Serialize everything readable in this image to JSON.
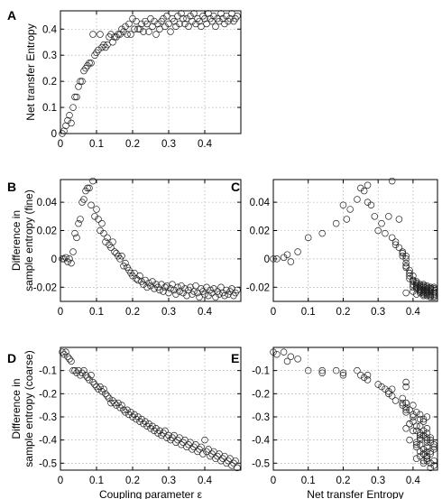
{
  "chart_data": [
    {
      "id": "A",
      "type": "scatter",
      "panel_label": "A",
      "xlabel": "",
      "ylabel": "Net transfer Entropy",
      "xlim": [
        0,
        0.5
      ],
      "ylim": [
        0,
        0.47
      ],
      "xticks": [
        0,
        0.1,
        0.2,
        0.3,
        0.4
      ],
      "xticklabels": [
        "0",
        "0.1",
        "0.2",
        "0.3",
        "0.4"
      ],
      "yticks": [
        0,
        0.1,
        0.2,
        0.3,
        0.4
      ],
      "yticklabels": [
        "0",
        "0.1",
        "0.2",
        "0.3",
        "0.4"
      ],
      "x": [
        0.005,
        0.01,
        0.015,
        0.02,
        0.025,
        0.03,
        0.035,
        0.04,
        0.045,
        0.05,
        0.055,
        0.06,
        0.065,
        0.07,
        0.075,
        0.08,
        0.085,
        0.09,
        0.095,
        0.1,
        0.105,
        0.11,
        0.115,
        0.12,
        0.125,
        0.13,
        0.135,
        0.14,
        0.145,
        0.15,
        0.155,
        0.16,
        0.165,
        0.17,
        0.175,
        0.18,
        0.185,
        0.19,
        0.195,
        0.2,
        0.205,
        0.21,
        0.215,
        0.22,
        0.225,
        0.23,
        0.235,
        0.24,
        0.245,
        0.25,
        0.255,
        0.26,
        0.265,
        0.27,
        0.275,
        0.28,
        0.285,
        0.29,
        0.295,
        0.3,
        0.305,
        0.31,
        0.315,
        0.32,
        0.325,
        0.33,
        0.335,
        0.34,
        0.345,
        0.35,
        0.355,
        0.36,
        0.365,
        0.37,
        0.375,
        0.38,
        0.385,
        0.39,
        0.395,
        0.4,
        0.405,
        0.41,
        0.415,
        0.42,
        0.425,
        0.43,
        0.435,
        0.44,
        0.445,
        0.45,
        0.455,
        0.46,
        0.465,
        0.47,
        0.475,
        0.48,
        0.485,
        0.49
      ],
      "y": [
        0.0,
        0.01,
        0.03,
        0.05,
        0.07,
        0.04,
        0.1,
        0.14,
        0.14,
        0.18,
        0.2,
        0.2,
        0.24,
        0.25,
        0.26,
        0.27,
        0.27,
        0.38,
        0.3,
        0.31,
        0.32,
        0.38,
        0.33,
        0.34,
        0.33,
        0.34,
        0.37,
        0.38,
        0.35,
        0.37,
        0.37,
        0.38,
        0.38,
        0.4,
        0.39,
        0.41,
        0.38,
        0.42,
        0.38,
        0.44,
        0.4,
        0.43,
        0.4,
        0.4,
        0.42,
        0.39,
        0.43,
        0.42,
        0.39,
        0.44,
        0.41,
        0.43,
        0.38,
        0.42,
        0.4,
        0.43,
        0.44,
        0.41,
        0.45,
        0.42,
        0.39,
        0.44,
        0.43,
        0.41,
        0.45,
        0.42,
        0.46,
        0.44,
        0.42,
        0.44,
        0.41,
        0.45,
        0.43,
        0.46,
        0.42,
        0.44,
        0.43,
        0.41,
        0.45,
        0.44,
        0.42,
        0.46,
        0.44,
        0.43,
        0.45,
        0.41,
        0.44,
        0.43,
        0.46,
        0.44,
        0.42,
        0.45,
        0.43,
        0.44,
        0.46,
        0.43,
        0.44,
        0.45
      ]
    },
    {
      "id": "B",
      "type": "scatter",
      "panel_label": "B",
      "xlabel": "",
      "ylabel": "Difference in sample entropy (fine)",
      "xlim": [
        0,
        0.5
      ],
      "ylim": [
        -0.03,
        0.056
      ],
      "xticks": [
        0,
        0.1,
        0.2,
        0.3,
        0.4
      ],
      "xticklabels": [
        "0",
        "0.1",
        "0.2",
        "0.3",
        "0.4"
      ],
      "yticks": [
        -0.02,
        0,
        0.02,
        0.04
      ],
      "yticklabels": [
        "-0.02",
        "0",
        "0.02",
        "0.04"
      ],
      "x": [
        0.005,
        0.01,
        0.015,
        0.02,
        0.025,
        0.03,
        0.035,
        0.04,
        0.045,
        0.05,
        0.055,
        0.06,
        0.065,
        0.07,
        0.075,
        0.08,
        0.085,
        0.09,
        0.095,
        0.1,
        0.105,
        0.11,
        0.115,
        0.12,
        0.125,
        0.13,
        0.135,
        0.14,
        0.145,
        0.15,
        0.155,
        0.16,
        0.165,
        0.17,
        0.175,
        0.18,
        0.185,
        0.19,
        0.195,
        0.2,
        0.205,
        0.21,
        0.215,
        0.22,
        0.225,
        0.23,
        0.235,
        0.24,
        0.245,
        0.25,
        0.255,
        0.26,
        0.265,
        0.27,
        0.275,
        0.28,
        0.285,
        0.29,
        0.295,
        0.3,
        0.305,
        0.31,
        0.315,
        0.32,
        0.325,
        0.33,
        0.335,
        0.34,
        0.345,
        0.35,
        0.355,
        0.36,
        0.365,
        0.37,
        0.375,
        0.38,
        0.385,
        0.39,
        0.395,
        0.4,
        0.405,
        0.41,
        0.415,
        0.42,
        0.425,
        0.43,
        0.435,
        0.44,
        0.445,
        0.45,
        0.455,
        0.46,
        0.465,
        0.47,
        0.475,
        0.48,
        0.485,
        0.49
      ],
      "y": [
        0.0,
        0.0,
        0.001,
        -0.002,
        0.0,
        -0.003,
        0.005,
        0.018,
        0.015,
        0.025,
        0.028,
        0.04,
        0.042,
        0.048,
        0.05,
        0.05,
        0.038,
        0.055,
        0.03,
        0.035,
        0.028,
        0.02,
        0.025,
        0.018,
        0.012,
        0.015,
        0.01,
        0.008,
        0.012,
        0.005,
        0.004,
        0.002,
        0.0,
        0.002,
        -0.005,
        -0.003,
        -0.006,
        -0.008,
        -0.01,
        -0.012,
        -0.01,
        -0.014,
        -0.015,
        -0.012,
        -0.016,
        -0.018,
        -0.015,
        -0.02,
        -0.017,
        -0.019,
        -0.016,
        -0.021,
        -0.018,
        -0.02,
        -0.022,
        -0.018,
        -0.023,
        -0.02,
        -0.019,
        -0.024,
        -0.021,
        -0.018,
        -0.022,
        -0.025,
        -0.02,
        -0.023,
        -0.019,
        -0.024,
        -0.021,
        -0.026,
        -0.022,
        -0.02,
        -0.025,
        -0.023,
        -0.019,
        -0.024,
        -0.027,
        -0.021,
        -0.023,
        -0.025,
        -0.02,
        -0.026,
        -0.022,
        -0.024,
        -0.021,
        -0.027,
        -0.023,
        -0.025,
        -0.02,
        -0.024,
        -0.026,
        -0.022,
        -0.025,
        -0.023,
        -0.021,
        -0.026,
        -0.024,
        -0.022
      ]
    },
    {
      "id": "C",
      "type": "scatter",
      "panel_label": "C",
      "xlabel": "",
      "ylabel": "",
      "xlim": [
        0,
        0.47
      ],
      "ylim": [
        -0.03,
        0.056
      ],
      "xticks": [
        0,
        0.1,
        0.2,
        0.3,
        0.4
      ],
      "xticklabels": [
        "0",
        "0.1",
        "0.2",
        "0.3",
        "0.4"
      ],
      "yticks": [
        -0.02,
        0,
        0.02,
        0.04
      ],
      "yticklabels": [
        "-0.02",
        "0",
        "0.02",
        "0.04"
      ],
      "x": [
        0.0,
        0.01,
        0.03,
        0.05,
        0.07,
        0.04,
        0.1,
        0.14,
        0.18,
        0.2,
        0.21,
        0.22,
        0.24,
        0.25,
        0.26,
        0.27,
        0.27,
        0.28,
        0.29,
        0.3,
        0.31,
        0.32,
        0.33,
        0.34,
        0.34,
        0.35,
        0.35,
        0.36,
        0.36,
        0.37,
        0.37,
        0.37,
        0.38,
        0.38,
        0.38,
        0.38,
        0.38,
        0.39,
        0.39,
        0.39,
        0.39,
        0.39,
        0.4,
        0.4,
        0.4,
        0.4,
        0.4,
        0.4,
        0.41,
        0.41,
        0.41,
        0.41,
        0.41,
        0.41,
        0.42,
        0.42,
        0.42,
        0.42,
        0.42,
        0.42,
        0.42,
        0.43,
        0.43,
        0.43,
        0.43,
        0.43,
        0.43,
        0.43,
        0.44,
        0.44,
        0.44,
        0.44,
        0.44,
        0.44,
        0.44,
        0.44,
        0.45,
        0.45,
        0.45,
        0.45,
        0.45,
        0.45,
        0.45,
        0.46,
        0.46,
        0.46,
        0.46,
        0.46,
        0.46,
        0.44,
        0.43,
        0.42,
        0.41,
        0.4,
        0.45,
        0.46,
        0.38,
        0.44
      ],
      "y": [
        0.0,
        0.0,
        0.001,
        -0.002,
        0.005,
        0.003,
        0.015,
        0.018,
        0.025,
        0.038,
        0.028,
        0.035,
        0.042,
        0.05,
        0.048,
        0.04,
        0.052,
        0.038,
        0.03,
        0.02,
        0.025,
        0.018,
        0.03,
        0.015,
        0.055,
        0.01,
        0.012,
        0.008,
        0.028,
        0.005,
        0.004,
        0.002,
        0.0,
        0.002,
        -0.005,
        -0.003,
        -0.006,
        -0.008,
        -0.01,
        -0.012,
        -0.01,
        -0.014,
        -0.015,
        -0.012,
        -0.016,
        -0.018,
        -0.015,
        -0.02,
        -0.017,
        -0.019,
        -0.016,
        -0.021,
        -0.018,
        -0.02,
        -0.022,
        -0.018,
        -0.023,
        -0.02,
        -0.019,
        -0.024,
        -0.021,
        -0.018,
        -0.022,
        -0.025,
        -0.02,
        -0.023,
        -0.019,
        -0.024,
        -0.021,
        -0.026,
        -0.022,
        -0.02,
        -0.025,
        -0.023,
        -0.019,
        -0.024,
        -0.027,
        -0.021,
        -0.023,
        -0.025,
        -0.02,
        -0.026,
        -0.022,
        -0.024,
        -0.021,
        -0.027,
        -0.023,
        -0.025,
        -0.02,
        -0.024,
        -0.026,
        -0.022,
        -0.025,
        -0.023,
        -0.021,
        -0.026,
        -0.024,
        -0.022
      ]
    },
    {
      "id": "D",
      "type": "scatter",
      "panel_label": "D",
      "xlabel": "Coupling parameter ε",
      "ylabel": "Difference in sample entropy (coarse)",
      "xlim": [
        0,
        0.5
      ],
      "ylim": [
        -0.53,
        0.0
      ],
      "xticks": [
        0,
        0.1,
        0.2,
        0.3,
        0.4
      ],
      "xticklabels": [
        "0",
        "0.1",
        "0.2",
        "0.3",
        "0.4"
      ],
      "yticks": [
        -0.5,
        -0.4,
        -0.3,
        -0.2,
        -0.1
      ],
      "yticklabels": [
        "-0.5",
        "-0.4",
        "-0.3",
        "-0.2",
        "-0.1"
      ],
      "x": [
        0.005,
        0.01,
        0.015,
        0.02,
        0.025,
        0.03,
        0.035,
        0.04,
        0.045,
        0.05,
        0.055,
        0.06,
        0.065,
        0.07,
        0.075,
        0.08,
        0.085,
        0.09,
        0.095,
        0.1,
        0.105,
        0.11,
        0.115,
        0.12,
        0.125,
        0.13,
        0.135,
        0.14,
        0.145,
        0.15,
        0.155,
        0.16,
        0.165,
        0.17,
        0.175,
        0.18,
        0.185,
        0.19,
        0.195,
        0.2,
        0.205,
        0.21,
        0.215,
        0.22,
        0.225,
        0.23,
        0.235,
        0.24,
        0.245,
        0.25,
        0.255,
        0.26,
        0.265,
        0.27,
        0.275,
        0.28,
        0.285,
        0.29,
        0.295,
        0.3,
        0.305,
        0.31,
        0.315,
        0.32,
        0.325,
        0.33,
        0.335,
        0.34,
        0.345,
        0.35,
        0.355,
        0.36,
        0.365,
        0.37,
        0.375,
        0.38,
        0.385,
        0.39,
        0.395,
        0.4,
        0.405,
        0.41,
        0.415,
        0.42,
        0.425,
        0.43,
        0.435,
        0.44,
        0.445,
        0.45,
        0.455,
        0.46,
        0.465,
        0.47,
        0.475,
        0.48,
        0.485,
        0.49
      ],
      "y": [
        -0.02,
        -0.03,
        -0.02,
        -0.04,
        -0.05,
        -0.06,
        -0.1,
        -0.1,
        -0.11,
        -0.1,
        -0.12,
        -0.11,
        -0.1,
        -0.12,
        -0.13,
        -0.14,
        -0.12,
        -0.15,
        -0.16,
        -0.17,
        -0.18,
        -0.17,
        -0.19,
        -0.18,
        -0.2,
        -0.21,
        -0.22,
        -0.24,
        -0.23,
        -0.24,
        -0.25,
        -0.24,
        -0.26,
        -0.25,
        -0.27,
        -0.28,
        -0.27,
        -0.29,
        -0.28,
        -0.3,
        -0.29,
        -0.31,
        -0.3,
        -0.32,
        -0.31,
        -0.33,
        -0.32,
        -0.34,
        -0.33,
        -0.35,
        -0.34,
        -0.36,
        -0.35,
        -0.37,
        -0.36,
        -0.38,
        -0.37,
        -0.36,
        -0.39,
        -0.38,
        -0.4,
        -0.39,
        -0.38,
        -0.41,
        -0.4,
        -0.39,
        -0.42,
        -0.41,
        -0.4,
        -0.43,
        -0.42,
        -0.41,
        -0.44,
        -0.43,
        -0.42,
        -0.45,
        -0.44,
        -0.43,
        -0.46,
        -0.4,
        -0.45,
        -0.44,
        -0.47,
        -0.46,
        -0.45,
        -0.48,
        -0.47,
        -0.46,
        -0.49,
        -0.48,
        -0.47,
        -0.5,
        -0.49,
        -0.48,
        -0.51,
        -0.5,
        -0.49,
        -0.52
      ]
    },
    {
      "id": "E",
      "type": "scatter",
      "panel_label": "E",
      "xlabel": "Net transfer Entropy",
      "ylabel": "",
      "xlim": [
        0,
        0.47
      ],
      "ylim": [
        -0.53,
        0.0
      ],
      "xticks": [
        0,
        0.1,
        0.2,
        0.3,
        0.4
      ],
      "xticklabels": [
        "0",
        "0.1",
        "0.2",
        "0.3",
        "0.4"
      ],
      "yticks": [
        -0.5,
        -0.4,
        -0.3,
        -0.2,
        -0.1
      ],
      "yticklabels": [
        "-0.5",
        "-0.4",
        "-0.3",
        "-0.2",
        "-0.1"
      ],
      "x": [
        0.0,
        0.01,
        0.03,
        0.05,
        0.07,
        0.04,
        0.1,
        0.14,
        0.14,
        0.18,
        0.2,
        0.2,
        0.24,
        0.25,
        0.26,
        0.27,
        0.27,
        0.38,
        0.3,
        0.31,
        0.32,
        0.38,
        0.33,
        0.34,
        0.33,
        0.34,
        0.37,
        0.38,
        0.35,
        0.37,
        0.37,
        0.38,
        0.38,
        0.4,
        0.39,
        0.41,
        0.38,
        0.42,
        0.38,
        0.44,
        0.4,
        0.43,
        0.4,
        0.4,
        0.42,
        0.39,
        0.43,
        0.42,
        0.39,
        0.44,
        0.41,
        0.43,
        0.38,
        0.42,
        0.4,
        0.43,
        0.44,
        0.41,
        0.45,
        0.42,
        0.39,
        0.44,
        0.43,
        0.41,
        0.45,
        0.42,
        0.46,
        0.44,
        0.42,
        0.44,
        0.41,
        0.45,
        0.43,
        0.46,
        0.42,
        0.44,
        0.43,
        0.41,
        0.45,
        0.44,
        0.42,
        0.46,
        0.44,
        0.43,
        0.45,
        0.41,
        0.44,
        0.43,
        0.46,
        0.44,
        0.42,
        0.45,
        0.43,
        0.44,
        0.46,
        0.43,
        0.44,
        0.45
      ],
      "y": [
        -0.02,
        -0.03,
        -0.02,
        -0.04,
        -0.05,
        -0.06,
        -0.1,
        -0.1,
        -0.11,
        -0.1,
        -0.12,
        -0.11,
        -0.1,
        -0.12,
        -0.13,
        -0.14,
        -0.12,
        -0.15,
        -0.16,
        -0.17,
        -0.18,
        -0.17,
        -0.19,
        -0.18,
        -0.2,
        -0.21,
        -0.22,
        -0.24,
        -0.23,
        -0.24,
        -0.25,
        -0.24,
        -0.26,
        -0.25,
        -0.27,
        -0.28,
        -0.27,
        -0.29,
        -0.28,
        -0.3,
        -0.29,
        -0.31,
        -0.3,
        -0.32,
        -0.31,
        -0.33,
        -0.32,
        -0.34,
        -0.33,
        -0.35,
        -0.34,
        -0.36,
        -0.35,
        -0.37,
        -0.36,
        -0.38,
        -0.37,
        -0.36,
        -0.39,
        -0.38,
        -0.4,
        -0.39,
        -0.38,
        -0.41,
        -0.4,
        -0.39,
        -0.42,
        -0.41,
        -0.4,
        -0.43,
        -0.42,
        -0.41,
        -0.44,
        -0.43,
        -0.42,
        -0.45,
        -0.44,
        -0.43,
        -0.46,
        -0.4,
        -0.45,
        -0.44,
        -0.47,
        -0.46,
        -0.45,
        -0.48,
        -0.47,
        -0.46,
        -0.49,
        -0.48,
        -0.47,
        -0.5,
        -0.49,
        -0.48,
        -0.51,
        -0.5,
        -0.49,
        -0.52
      ]
    }
  ]
}
